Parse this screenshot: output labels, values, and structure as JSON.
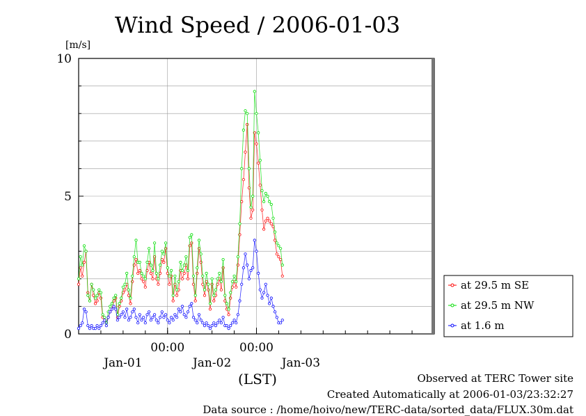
{
  "chart_data": {
    "type": "line",
    "title": "Wind Speed / 2006-01-03",
    "ylabel": "[m/s]",
    "xlabel": "(LST)",
    "ylim": [
      0,
      10
    ],
    "xlim": [
      0,
      96
    ],
    "x_unit": "hours after 2006-01-01 00:00 LST",
    "grid": true,
    "legend_position": "right-bottom",
    "y_ticks": [
      0,
      5,
      10
    ],
    "x_major_ticks": [
      {
        "x": 24,
        "label": "00:00"
      },
      {
        "x": 48,
        "label": "00:00"
      }
    ],
    "x_day_labels": [
      {
        "x": 12,
        "label": "Jan-01"
      },
      {
        "x": 36,
        "label": "Jan-02"
      },
      {
        "x": 60,
        "label": "Jan-03"
      }
    ],
    "x_step_hours": 0.5,
    "series": [
      {
        "name": "at 29.5 m SE",
        "color": "#ff0000",
        "values": [
          1.8,
          2.4,
          2.1,
          2.6,
          3.0,
          1.5,
          1.2,
          1.8,
          1.4,
          1.1,
          1.2,
          1.5,
          1.3,
          0.6,
          0.5,
          0.4,
          0.6,
          0.8,
          0.9,
          1.2,
          1.3,
          0.6,
          1.0,
          1.2,
          1.5,
          1.6,
          1.8,
          1.4,
          1.1,
          1.9,
          2.5,
          2.7,
          2.2,
          2.3,
          2.0,
          1.9,
          1.7,
          2.3,
          2.6,
          2.2,
          2.0,
          2.8,
          2.0,
          1.8,
          2.2,
          2.7,
          2.6,
          3.1,
          2.2,
          1.8,
          2.1,
          1.2,
          1.8,
          1.4,
          1.6,
          2.3,
          2.0,
          2.2,
          2.5,
          2.0,
          3.2,
          3.3,
          1.8,
          1.2,
          2.2,
          3.1,
          2.6,
          1.8,
          1.4,
          1.9,
          1.6,
          0.9,
          1.8,
          1.2,
          1.4,
          1.8,
          2.0,
          1.6,
          2.4,
          1.2,
          0.9,
          0.7,
          1.3,
          1.7,
          1.9,
          1.7,
          2.5,
          3.6,
          4.8,
          5.6,
          6.6,
          7.6,
          5.3,
          4.2,
          4.5,
          7.3,
          6.9,
          6.2,
          5.4,
          4.5,
          3.8,
          4.1,
          4.2,
          4.1,
          4.0,
          3.9,
          3.4,
          2.9,
          2.8,
          2.7,
          2.1
        ]
      },
      {
        "name": "at 29.5 m NW",
        "color": "#00dd00",
        "values": [
          2.0,
          2.8,
          2.5,
          3.2,
          3.0,
          1.4,
          1.2,
          1.8,
          1.6,
          1.3,
          1.4,
          1.6,
          1.5,
          0.7,
          0.6,
          0.4,
          0.8,
          1.0,
          1.1,
          1.3,
          1.4,
          0.7,
          1.1,
          1.3,
          1.7,
          1.8,
          2.2,
          1.6,
          1.3,
          2.1,
          2.8,
          3.4,
          2.6,
          2.6,
          2.2,
          2.1,
          2.0,
          2.6,
          3.1,
          2.5,
          2.3,
          3.3,
          2.2,
          2.0,
          2.5,
          3.0,
          2.9,
          3.3,
          2.4,
          2.1,
          2.3,
          1.4,
          2.1,
          1.6,
          1.9,
          2.6,
          2.3,
          2.5,
          2.8,
          2.3,
          3.5,
          3.6,
          2.1,
          1.4,
          2.4,
          3.4,
          2.9,
          2.1,
          1.6,
          2.2,
          1.8,
          1.1,
          2.0,
          1.4,
          1.6,
          2.0,
          2.2,
          1.9,
          2.7,
          1.4,
          1.1,
          0.9,
          1.5,
          1.9,
          2.1,
          1.9,
          2.8,
          4.0,
          6.0,
          7.4,
          8.1,
          8.0,
          6.0,
          4.6,
          5.0,
          8.8,
          8.0,
          7.3,
          6.3,
          5.2,
          4.8,
          5.1,
          5.0,
          4.8,
          4.7,
          4.2,
          3.7,
          3.3,
          3.2,
          3.1,
          2.5
        ]
      },
      {
        "name": "at 1.6 m",
        "color": "#0000ff",
        "values": [
          0.2,
          0.3,
          0.4,
          0.9,
          0.8,
          0.3,
          0.2,
          0.3,
          0.2,
          0.2,
          0.3,
          0.2,
          0.3,
          0.4,
          0.5,
          0.3,
          0.6,
          0.8,
          0.9,
          1.0,
          0.9,
          0.5,
          0.6,
          0.7,
          0.8,
          0.6,
          0.9,
          0.5,
          0.6,
          0.8,
          0.9,
          0.6,
          0.4,
          0.7,
          0.5,
          0.6,
          0.4,
          0.7,
          0.8,
          0.5,
          0.6,
          0.7,
          0.5,
          0.4,
          0.6,
          0.8,
          0.6,
          0.7,
          0.5,
          0.4,
          0.6,
          0.5,
          0.7,
          0.6,
          0.9,
          0.8,
          1.0,
          0.7,
          0.6,
          0.8,
          1.0,
          1.1,
          0.6,
          0.5,
          0.4,
          0.7,
          0.5,
          0.4,
          0.3,
          0.4,
          0.3,
          0.2,
          0.3,
          0.4,
          0.3,
          0.4,
          0.5,
          0.4,
          0.6,
          0.3,
          0.3,
          0.2,
          0.3,
          0.4,
          0.5,
          0.4,
          0.7,
          1.2,
          1.8,
          2.4,
          2.9,
          2.5,
          2.0,
          2.3,
          2.4,
          3.4,
          3.0,
          2.2,
          1.6,
          1.3,
          1.5,
          1.8,
          1.4,
          1.1,
          1.3,
          1.0,
          0.8,
          0.6,
          0.4,
          0.4,
          0.5
        ]
      }
    ]
  },
  "footer": {
    "line1": "Observed at TERC Tower site",
    "line2": "Created Automatically at 2006-01-03/23:32:27",
    "line3": "Data source : /home/hoivo/new/TERC-data/sorted_data/FLUX.30m.dat"
  }
}
